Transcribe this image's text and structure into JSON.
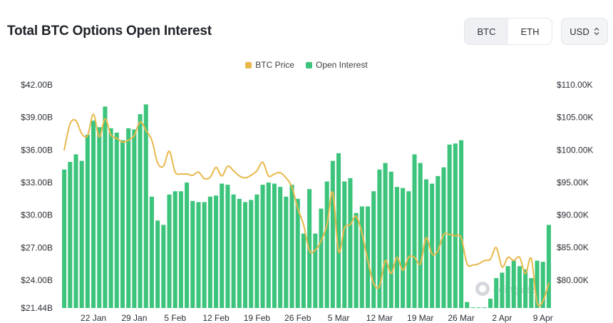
{
  "header": {
    "title": "Total BTC Options Open Interest"
  },
  "controls": {
    "asset_options": [
      "BTC",
      "ETH"
    ],
    "asset_selected": "BTC",
    "currency": "USD"
  },
  "watermark": "coinglass",
  "colors": {
    "oi": "#3cc47c",
    "price": "#e8b84b",
    "watermark": "#c9ccd1"
  },
  "chart_data": {
    "type": "bar",
    "title": "Total BTC Options Open Interest",
    "legend": [
      "BTC Price",
      "Open Interest"
    ],
    "legend_position": "top-center",
    "grid": false,
    "y_left": {
      "ticks": [
        21.44,
        24,
        27,
        30,
        33,
        36,
        39,
        42
      ],
      "tick_labels": [
        "$21.44B",
        "$24.00B",
        "$27.00B",
        "$30.00B",
        "$33.00B",
        "$36.00B",
        "$39.00B",
        "$42.00B"
      ],
      "range": [
        21.44,
        42
      ]
    },
    "y_right": {
      "ticks": [
        80,
        85,
        90,
        95,
        100,
        105,
        110
      ],
      "tick_labels": [
        "$80.00K",
        "$85.00K",
        "$90.00K",
        "$95.00K",
        "$100.00K",
        "$105.00K",
        "$110.00K"
      ],
      "range": [
        75.7,
        110
      ]
    },
    "x_tick_labels": [
      "22 Jan",
      "29 Jan",
      "5 Feb",
      "12 Feb",
      "19 Feb",
      "26 Feb",
      "5 Mar",
      "12 Mar",
      "19 Mar",
      "26 Mar",
      "2 Apr",
      "9 Apr"
    ],
    "x_tick_index": [
      5,
      12,
      19,
      26,
      33,
      40,
      47,
      54,
      61,
      68,
      75,
      82
    ],
    "series": [
      {
        "name": "Open Interest",
        "unit": "billion USD",
        "values": [
          34.2,
          34.9,
          35.6,
          35.0,
          37.4,
          38.7,
          38.1,
          40.0,
          38.0,
          37.6,
          36.9,
          38.0,
          37.9,
          39.3,
          40.2,
          31.7,
          29.5,
          29.1,
          31.9,
          32.2,
          32.2,
          33.0,
          31.3,
          31.2,
          31.2,
          31.7,
          31.8,
          32.9,
          32.8,
          31.9,
          31.5,
          31.2,
          31.4,
          31.9,
          32.8,
          33.0,
          32.9,
          32.6,
          31.7,
          32.8,
          31.5,
          28.3,
          32.4,
          28.3,
          30.6,
          33.1,
          35.0,
          35.7,
          33.1,
          33.4,
          30.2,
          30.8,
          30.8,
          32.2,
          34.2,
          34.8,
          34.0,
          32.6,
          32.5,
          32.2,
          35.6,
          34.8,
          33.3,
          32.9,
          33.6,
          34.4,
          36.5,
          36.6,
          36.9,
          22.0,
          21.5,
          21.5,
          21.5,
          22.3,
          24.2,
          24.7,
          25.3,
          25.8,
          25.3,
          25.0,
          24.2,
          25.8,
          25.7,
          29.1
        ]
      },
      {
        "name": "BTC Price",
        "unit": "thousand USD",
        "values": [
          100.0,
          104.0,
          104.5,
          102.5,
          102.2,
          105.5,
          102.0,
          104.8,
          102.3,
          101.8,
          101.2,
          101.5,
          102.2,
          104.3,
          103.0,
          101.5,
          98.0,
          97.5,
          99.8,
          96.6,
          96.3,
          96.3,
          96.1,
          96.6,
          95.6,
          95.8,
          97.3,
          96.0,
          97.5,
          96.8,
          96.0,
          95.7,
          96.1,
          96.8,
          98.1,
          96.0,
          96.3,
          96.5,
          95.7,
          94.3,
          91.0,
          88.5,
          84.5,
          84.6,
          86.0,
          88.5,
          93.5,
          84.4,
          88.0,
          88.5,
          89.8,
          87.2,
          83.0,
          79.5,
          79.0,
          83.0,
          81.0,
          83.5,
          81.5,
          83.5,
          83.5,
          82.5,
          86.5,
          84.0,
          84.5,
          87.0,
          87.0,
          86.8,
          86.5,
          82.5,
          82.3,
          82.5,
          83.0,
          83.2,
          85.0,
          82.0,
          83.5,
          83.0,
          83.5,
          81.0,
          83.3,
          76.5,
          76.8,
          79.5
        ]
      }
    ]
  }
}
